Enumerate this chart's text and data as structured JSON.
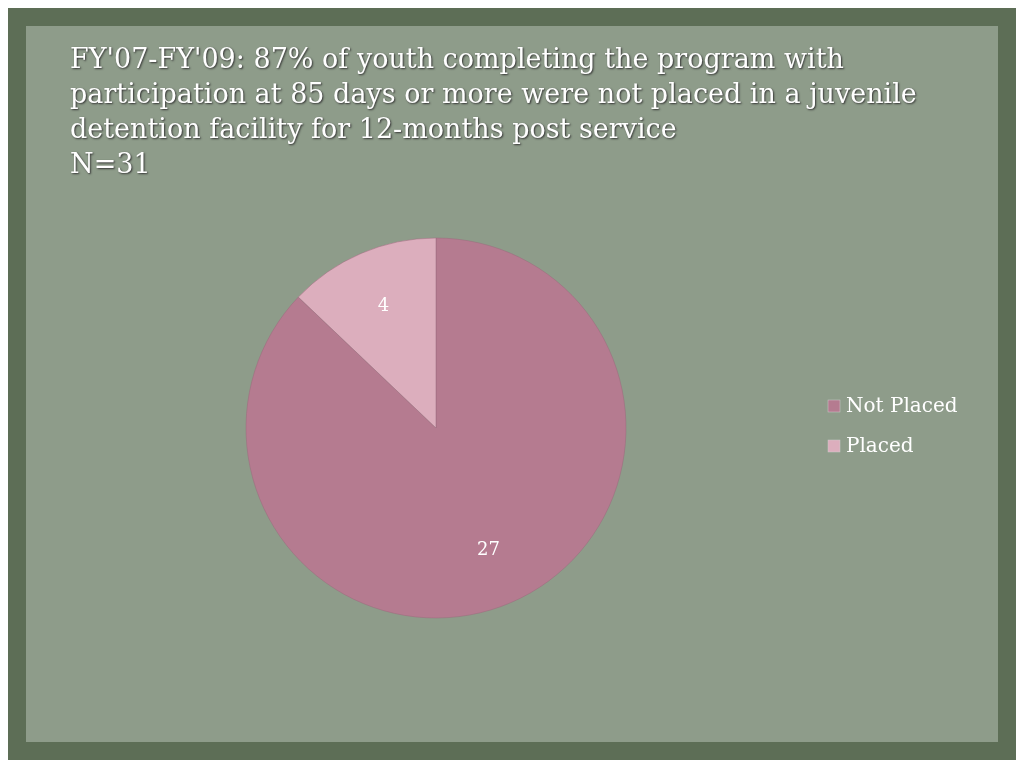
{
  "chart_data": {
    "type": "pie",
    "title": "FY'07-FY'09:  87% of youth completing the program with participation at 85 days or more were not placed in a juvenile detention facility for 12-months post service",
    "subtitle": "N=31",
    "categories": [
      "Not Placed",
      "Placed"
    ],
    "values": [
      27,
      4
    ],
    "colors": [
      "#b57b90",
      "#dcaebd"
    ],
    "data_labels": true,
    "legend": "right"
  }
}
